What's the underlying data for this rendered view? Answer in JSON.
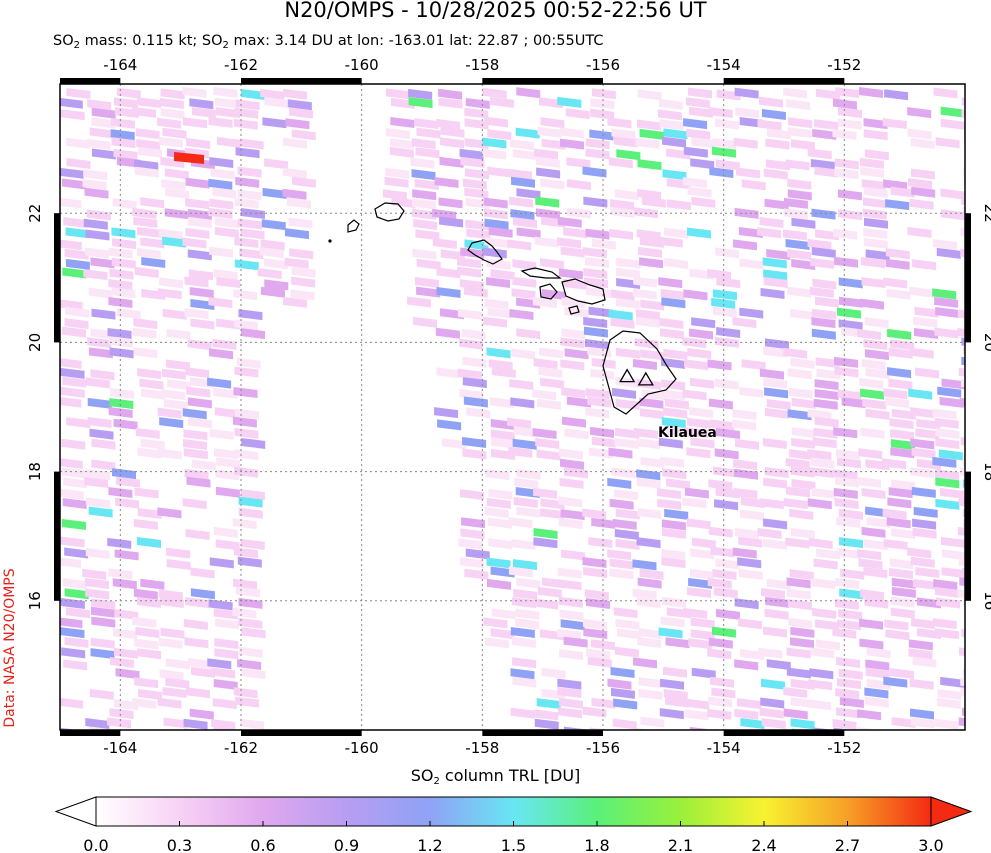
{
  "header": {
    "title": "N20/OMPS - 10/28/2025 00:52-22:56 UT",
    "stats_parts": [
      "SO",
      "2",
      " mass: 0.115 kt; SO",
      "2",
      " max: 3.14 DU at lon: -163.01 lat: 22.87 ; 00:55UTC"
    ]
  },
  "credit": "Data: NASA N20/OMPS",
  "map": {
    "lon_ticks": [
      -164,
      -162,
      -160,
      -158,
      -156,
      -154,
      -152
    ],
    "lat_ticks": [
      22,
      20,
      18,
      16
    ],
    "lon_range": [
      -165.0,
      -150.0
    ],
    "lat_range": [
      14.0,
      24.0
    ],
    "grid": "dotted",
    "volcano_label": "Kilauea",
    "volcano_markers": [
      {
        "name": "volcano-1",
        "lon": -155.6,
        "lat": 19.47
      },
      {
        "name": "volcano-2",
        "lon": -155.29,
        "lat": 19.42
      }
    ],
    "colors": {
      "frame": "#000000",
      "grid": "#888888",
      "coast": "#000000"
    }
  },
  "colorbar": {
    "title_parts": [
      "SO",
      "2",
      " column TRL [DU]"
    ],
    "min": 0.0,
    "max": 3.0,
    "tick_labels": [
      "0.0",
      "0.3",
      "0.6",
      "0.9",
      "1.2",
      "1.5",
      "1.8",
      "2.1",
      "2.4",
      "2.7",
      "3.0"
    ],
    "colors": [
      "#ffffff",
      "#f7d2f5",
      "#e0a8ee",
      "#b79ef2",
      "#8fa2f5",
      "#69e6f4",
      "#5af07a",
      "#9af03c",
      "#f7f230",
      "#f7a028",
      "#f42a12"
    ]
  }
}
